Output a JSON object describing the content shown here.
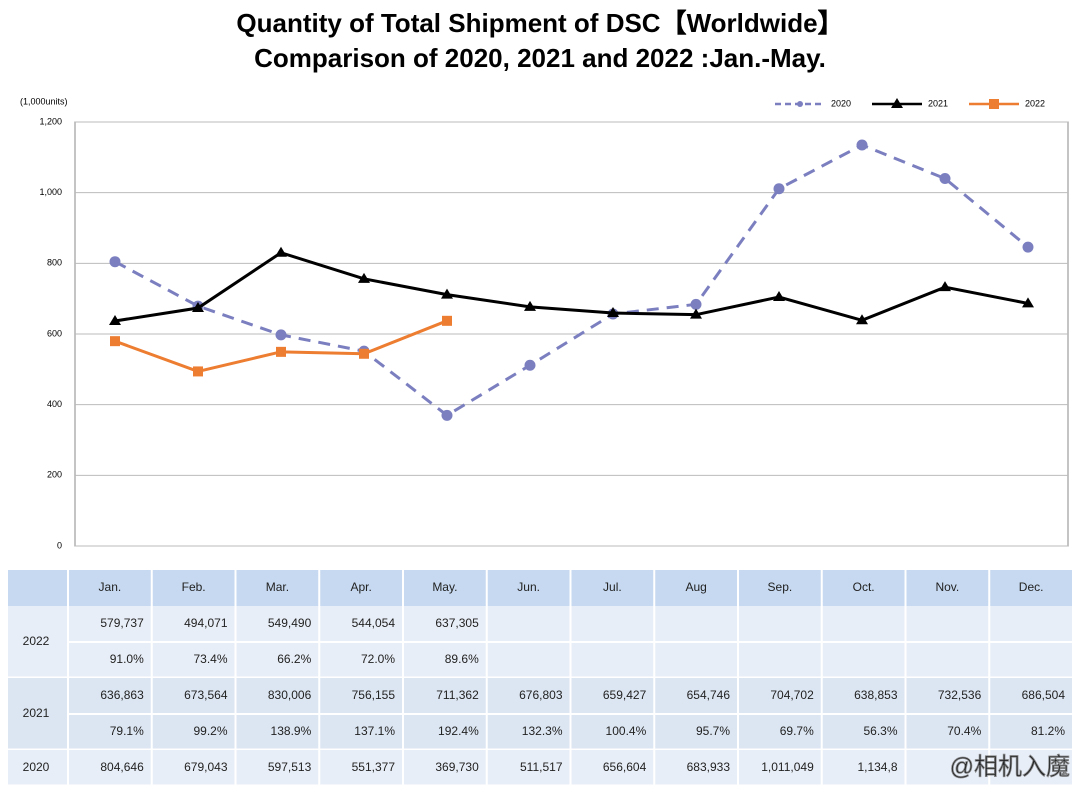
{
  "chart_data": {
    "type": "line",
    "title": "Quantity of Total Shipment of DSC【Worldwide】",
    "subtitle": "Comparison of 2020, 2021 and 2022 :Jan.-May.",
    "y_label": "(1,000units)",
    "categories": [
      "Jan.",
      "Feb.",
      "Mar.",
      "Apr.",
      "May.",
      "Jun.",
      "Jul.",
      "Aug",
      "Sep.",
      "Oct.",
      "Nov.",
      "Dec."
    ],
    "series": [
      {
        "name": "2020",
        "color": "#7b7fc0",
        "dashed": true,
        "marker": "circle",
        "values": [
          804.646,
          679.043,
          597.513,
          551.377,
          369.73,
          511.517,
          656.604,
          683.933,
          1011.049,
          1134.8,
          1040,
          846
        ]
      },
      {
        "name": "2021",
        "color": "#000000",
        "dashed": false,
        "marker": "triangle",
        "values": [
          636.863,
          673.564,
          830.006,
          756.155,
          711.362,
          676.803,
          659.427,
          654.746,
          704.702,
          638.853,
          732.536,
          686.504
        ]
      },
      {
        "name": "2022",
        "color": "#ed7d31",
        "dashed": false,
        "marker": "square",
        "values": [
          579.737,
          494.071,
          549.49,
          544.054,
          637.305,
          null,
          null,
          null,
          null,
          null,
          null,
          null
        ]
      }
    ],
    "ylim": [
      0,
      1200
    ],
    "yticks": [
      0,
      200,
      400,
      600,
      800,
      {
        "value": 1000,
        "label": "1,000"
      },
      {
        "value": 1200,
        "label": "1,200"
      }
    ],
    "grid": true,
    "legend": "top-right"
  },
  "table": {
    "groups": [
      {
        "label": "2022",
        "rows": [
          [
            "579,737",
            "494,071",
            "549,490",
            "544,054",
            "637,305"
          ],
          [
            "91.0%",
            "73.4%",
            "66.2%",
            "72.0%",
            "89.6%"
          ]
        ]
      },
      {
        "label": "2021",
        "rows": [
          [
            "636,863",
            "673,564",
            "830,006",
            "756,155",
            "711,362",
            "676,803",
            "659,427",
            "654,746",
            "704,702",
            "638,853",
            "732,536",
            "686,504"
          ],
          [
            "79.1%",
            "99.2%",
            "138.9%",
            "137.1%",
            "192.4%",
            "132.3%",
            "100.4%",
            "95.7%",
            "69.7%",
            "56.3%",
            "70.4%",
            "81.2%"
          ]
        ]
      },
      {
        "label": "2020",
        "rows": [
          [
            "804,646",
            "679,043",
            "597,513",
            "551,377",
            "369,730",
            "511,517",
            "656,604",
            "683,933",
            "1,011,049",
            "1,134,8"
          ]
        ]
      }
    ]
  },
  "watermark": "@相机入魔"
}
